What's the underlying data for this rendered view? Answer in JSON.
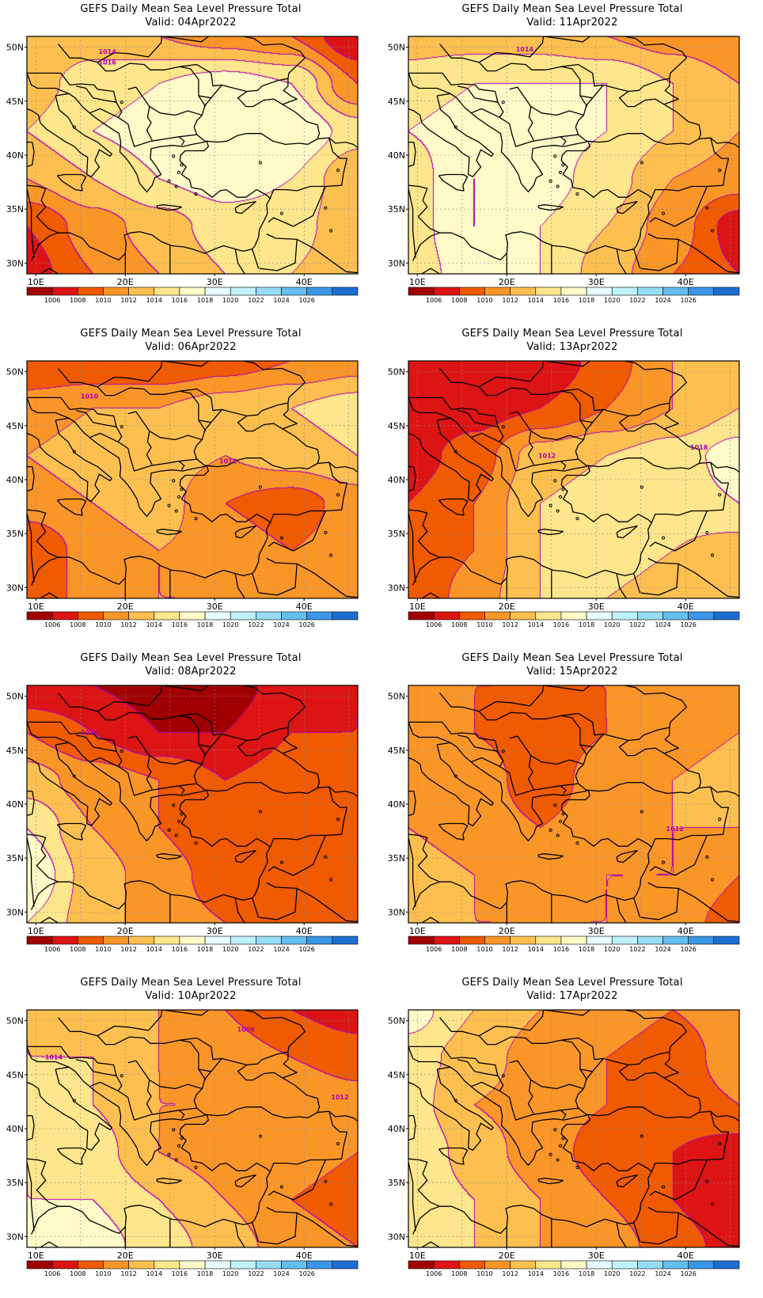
{
  "figure": {
    "panel_title": "GEFS Daily Mean Sea Level Pressure Total",
    "valid_prefix": "Valid:",
    "lon_ticks": [
      "10E",
      "20E",
      "30E",
      "40E"
    ],
    "lat_ticks": [
      "50N",
      "45N",
      "40N",
      "35N",
      "30N"
    ],
    "colorbar_labels": [
      "1006",
      "1008",
      "1010",
      "1012",
      "1014",
      "1016",
      "1018",
      "1020",
      "1022",
      "1024",
      "1026"
    ],
    "colorbar_colors": [
      "#a00000",
      "#dc1414",
      "#f05a00",
      "#fa9628",
      "#fdc050",
      "#fee68c",
      "#fffac8",
      "#e6fcff",
      "#c0f0fa",
      "#96dcf5",
      "#64bef0",
      "#3c96e6",
      "#1e6ed2"
    ],
    "contour_color": "#b000b0"
  },
  "panels": [
    {
      "date": "04Apr2022",
      "field": [
        [
          1012,
          1013,
          1012,
          1011,
          1010,
          1006
        ],
        [
          1013,
          1015,
          1016,
          1017,
          1016,
          1010
        ],
        [
          1014,
          1016,
          1017,
          1017,
          1018,
          1015
        ],
        [
          1012,
          1014,
          1016,
          1017,
          1016,
          1012
        ],
        [
          1008,
          1011,
          1013,
          1015,
          1015,
          1012
        ],
        [
          1007,
          1010,
          1012,
          1014,
          1014,
          1012
        ]
      ],
      "labels": [
        {
          "text": "1014",
          "lon": 18,
          "lat": 49.4
        },
        {
          "text": "1016",
          "lon": 18,
          "lat": 48.4
        }
      ]
    },
    {
      "date": "11Apr2022",
      "field": [
        [
          1013,
          1013,
          1013,
          1012,
          1011,
          1010
        ],
        [
          1015,
          1016,
          1016,
          1016,
          1014,
          1012
        ],
        [
          1016,
          1017,
          1017,
          1016,
          1014,
          1012
        ],
        [
          1015,
          1018,
          1017,
          1015,
          1012,
          1011
        ],
        [
          1015,
          1018,
          1016,
          1014,
          1011,
          1007
        ],
        [
          1015,
          1017,
          1016,
          1013,
          1010,
          1008
        ]
      ],
      "labels": [
        {
          "text": "1014",
          "lon": 22,
          "lat": 49.6
        }
      ]
    },
    {
      "date": "06Apr2022",
      "field": [
        [
          1008,
          1008,
          1008,
          1009,
          1010,
          1011
        ],
        [
          1011,
          1012,
          1012,
          1013,
          1014,
          1015
        ],
        [
          1012,
          1013,
          1013,
          1012,
          1013,
          1014
        ],
        [
          1011,
          1012,
          1013,
          1010,
          1009,
          1011
        ],
        [
          1008,
          1011,
          1012,
          1011,
          1010,
          1011
        ],
        [
          1008,
          1011,
          1012,
          1012,
          1011,
          1012
        ]
      ],
      "labels": [
        {
          "text": "1010",
          "lon": 16,
          "lat": 47.5
        },
        {
          "text": "1012",
          "lon": 31.5,
          "lat": 41.5
        }
      ]
    },
    {
      "date": "13Apr2022",
      "field": [
        [
          1006,
          1006,
          1006,
          1009,
          1012,
          1013
        ],
        [
          1006,
          1007,
          1008,
          1010,
          1012,
          1014
        ],
        [
          1007,
          1009,
          1013,
          1014,
          1015,
          1017
        ],
        [
          1008,
          1010,
          1014,
          1015,
          1015,
          1016
        ],
        [
          1008,
          1010,
          1014,
          1015,
          1014,
          1013
        ],
        [
          1008,
          1011,
          1014,
          1014,
          1013,
          1012
        ]
      ],
      "labels": [
        {
          "text": "1012",
          "lon": 24.5,
          "lat": 42
        },
        {
          "text": "1018",
          "lon": 41.5,
          "lat": 42.8
        }
      ]
    },
    {
      "date": "08Apr2022",
      "field": [
        [
          1006,
          1006,
          1005,
          1005,
          1007,
          1008
        ],
        [
          1010,
          1008,
          1006,
          1006,
          1008,
          1008
        ],
        [
          1013,
          1011,
          1010,
          1008,
          1009,
          1009
        ],
        [
          1016,
          1012,
          1010,
          1008,
          1009,
          1009
        ],
        [
          1018,
          1013,
          1011,
          1009,
          1008,
          1008
        ],
        [
          1016,
          1013,
          1011,
          1010,
          1009,
          1009
        ]
      ],
      "labels": [
        {
          "text": "1010",
          "lon": 16,
          "lat": 46.4
        }
      ]
    },
    {
      "date": "15Apr2022",
      "field": [
        [
          1011,
          1010,
          1010,
          1010,
          1011,
          1012
        ],
        [
          1011,
          1010,
          1009,
          1010,
          1011,
          1012
        ],
        [
          1012,
          1011,
          1009,
          1011,
          1012,
          1013
        ],
        [
          1012,
          1011,
          1010,
          1011,
          1012,
          1012
        ],
        [
          1013,
          1012,
          1011,
          1012,
          1012,
          1010
        ],
        [
          1013,
          1012,
          1012,
          1012,
          1011,
          1009
        ]
      ],
      "labels": [
        {
          "text": "1012",
          "lon": 38.8,
          "lat": 37.5
        }
      ]
    },
    {
      "date": "10Apr2022",
      "field": [
        [
          1014,
          1013,
          1012,
          1010,
          1008,
          1007
        ],
        [
          1014,
          1014,
          1012,
          1011,
          1010,
          1009
        ],
        [
          1015,
          1014,
          1012,
          1012,
          1012,
          1011
        ],
        [
          1016,
          1015,
          1012,
          1011,
          1011,
          1010
        ],
        [
          1016,
          1016,
          1014,
          1012,
          1010,
          1009
        ],
        [
          1016,
          1017,
          1015,
          1013,
          1011,
          1010
        ]
      ],
      "labels": [
        {
          "text": "1014",
          "lon": 12,
          "lat": 46.4
        },
        {
          "text": "1012",
          "lon": 44,
          "lat": 42.7
        },
        {
          "text": "1008",
          "lon": 33.5,
          "lat": 49
        }
      ]
    },
    {
      "date": "17Apr2022",
      "field": [
        [
          1017,
          1014,
          1012,
          1011,
          1010,
          1011
        ],
        [
          1015,
          1013,
          1011,
          1010,
          1009,
          1011
        ],
        [
          1015,
          1012,
          1011,
          1010,
          1009,
          1010
        ],
        [
          1016,
          1013,
          1011,
          1009,
          1008,
          1007
        ],
        [
          1016,
          1014,
          1012,
          1010,
          1008,
          1006
        ],
        [
          1016,
          1014,
          1012,
          1011,
          1009,
          1007
        ]
      ],
      "labels": []
    }
  ]
}
